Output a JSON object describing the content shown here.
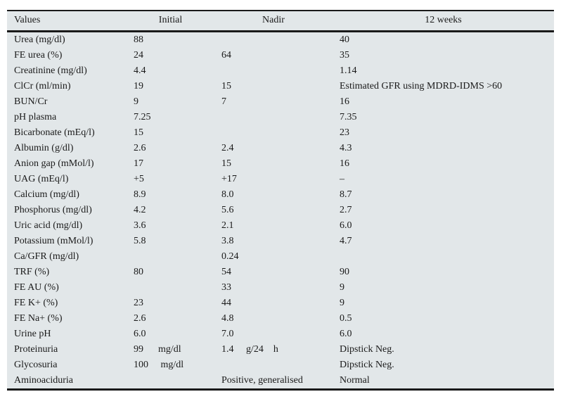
{
  "header": {
    "columns": [
      "Values",
      "Initial",
      "Nadir",
      "12 weeks"
    ]
  },
  "rows": [
    {
      "label": "Urea (mg/dl)",
      "initial": "88",
      "nadir": "",
      "week12": "40"
    },
    {
      "label": "FE urea (%)",
      "initial": "24",
      "nadir": "64",
      "week12": "35"
    },
    {
      "label": "Creatinine (mg/dl)",
      "initial": "4.4",
      "nadir": "",
      "week12": "1.14"
    },
    {
      "label": "ClCr (ml/min)",
      "initial": "19",
      "nadir": "15",
      "week12": "Estimated GFR using MDRD-IDMS >60"
    },
    {
      "label": "BUN/Cr",
      "initial": "9",
      "nadir": "7",
      "week12": "16"
    },
    {
      "label": "pH plasma",
      "initial": "7.25",
      "nadir": "",
      "week12": "7.35"
    },
    {
      "label": "Bicarbonate (mEq/l)",
      "initial": "15",
      "nadir": "",
      "week12": "23"
    },
    {
      "label": "Albumin (g/dl)",
      "initial": "2.6",
      "nadir": "2.4",
      "week12": "4.3"
    },
    {
      "label": "Anion gap (mMol/l)",
      "initial": "17",
      "nadir": "15",
      "week12": "16"
    },
    {
      "label": "UAG (mEq/l)",
      "initial": "+5",
      "nadir": "+17",
      "week12": "–"
    },
    {
      "label": "Calcium (mg/dl)",
      "initial": "8.9",
      "nadir": "8.0",
      "week12": "8.7"
    },
    {
      "label": "Phosphorus (mg/dl)",
      "initial": "4.2",
      "nadir": "5.6",
      "week12": "2.7"
    },
    {
      "label": "Uric acid (mg/dl)",
      "initial": "3.6",
      "nadir": "2.1",
      "week12": "6.0"
    },
    {
      "label": "Potassium (mMol/l)",
      "initial": "5.8",
      "nadir": "3.8",
      "week12": "4.7"
    },
    {
      "label": "Ca/GFR (mg/dl)",
      "initial": "",
      "nadir": "0.24",
      "week12": ""
    },
    {
      "label": "TRF (%)",
      "initial": "80",
      "nadir": "54",
      "week12": "90"
    },
    {
      "label": "FE AU (%)",
      "initial": "",
      "nadir": "33",
      "week12": "9"
    },
    {
      "label": "FE K+ (%)",
      "initial": "23",
      "nadir": "44",
      "week12": "9"
    },
    {
      "label": "FE Na+ (%)",
      "initial": "2.6",
      "nadir": "4.8",
      "week12": "0.5"
    },
    {
      "label": "Urine pH",
      "initial": "6.0",
      "nadir": "7.0",
      "week12": "6.0"
    },
    {
      "label": "Proteinuria",
      "initial": "99      mg/dl",
      "nadir": "1.4     g/24    h",
      "week12": "Dipstick Neg."
    },
    {
      "label": "Glycosuria",
      "initial": "100     mg/dl",
      "nadir": "",
      "week12": "Dipstick Neg."
    },
    {
      "label": "Aminoaciduria",
      "initial": "",
      "nadir": "Positive, generalised",
      "week12": "Normal"
    }
  ],
  "colors": {
    "table_bg": "#e2e7e9",
    "rule": "#1a1a1a",
    "text": "#1a1a1a"
  }
}
